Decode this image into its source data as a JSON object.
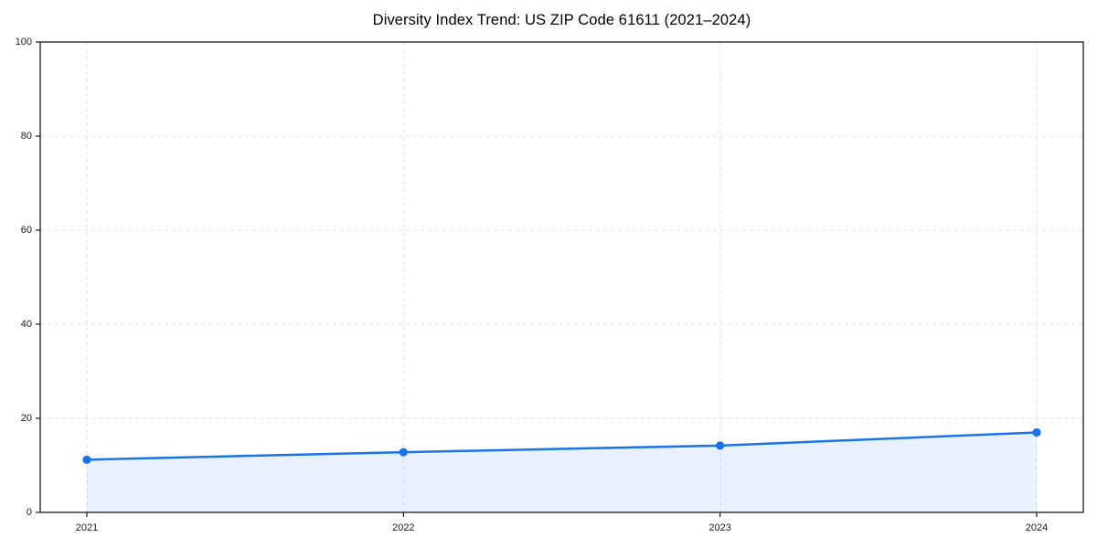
{
  "chart_data": {
    "type": "area",
    "title": "Diversity Index Trend: US ZIP Code 61611 (2021–2024)",
    "x": [
      "2021",
      "2022",
      "2023",
      "2024"
    ],
    "series": [
      {
        "name": "Diversity Index",
        "values": [
          11.2,
          12.8,
          14.2,
          17.0
        ]
      }
    ],
    "xlabel": "",
    "ylabel": "",
    "ylim": [
      0,
      100
    ],
    "yticks": [
      0,
      20,
      40,
      60,
      80,
      100
    ],
    "grid": true,
    "grid_style": "dashed",
    "legend_position": "none",
    "line_color": "#1a73e8",
    "marker": "circle",
    "fill_color": "#1a73e8",
    "fill_opacity": 0.1,
    "grid_color": "#dcdcdc",
    "spine_color": "#1a1a1a",
    "background_color": "#ffffff"
  }
}
